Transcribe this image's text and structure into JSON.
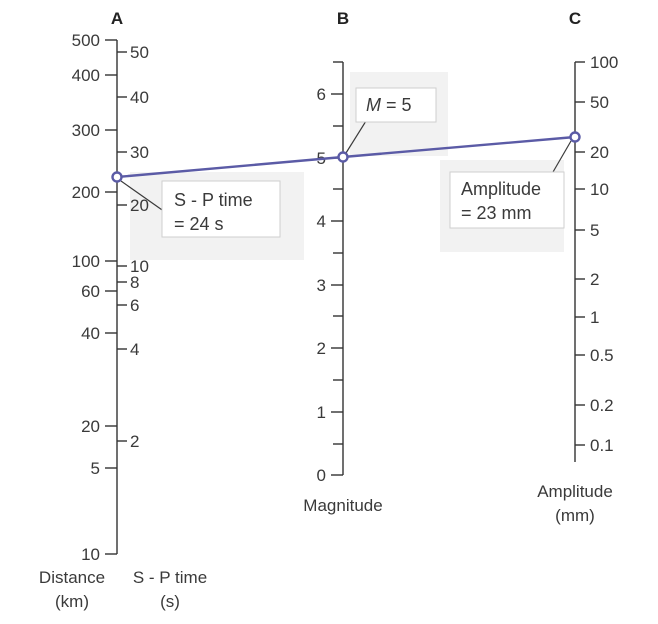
{
  "headers": {
    "a": "A",
    "b": "B",
    "c": "C"
  },
  "axis_a": {
    "distance_ticks": [
      "500",
      "400",
      "300",
      "200",
      "100",
      "60",
      "40",
      "20",
      "5",
      "10"
    ],
    "sp_ticks": [
      "50",
      "40",
      "30",
      "20",
      "10",
      "8",
      "6",
      "4",
      "2"
    ],
    "title_distance_line1": "Distance",
    "title_distance_line2": "(km)",
    "title_sp_line1": "S - P time",
    "title_sp_line2": "(s)"
  },
  "axis_b": {
    "ticks": [
      "6",
      "5",
      "4",
      "3",
      "2",
      "1",
      "0"
    ],
    "title": "Magnitude"
  },
  "axis_c": {
    "ticks": [
      "100",
      "50",
      "20",
      "10",
      "5",
      "2",
      "1",
      "0.5",
      "0.2",
      "0.1"
    ],
    "title_line1": "Amplitude",
    "title_line2": "(mm)"
  },
  "callouts": {
    "sp": {
      "line1": "S - P time",
      "line2": "= 24 s"
    },
    "magnitude": {
      "m_symbol": "M",
      "rest": " = 5"
    },
    "amplitude": {
      "line1": "Amplitude",
      "line2": "= 23 mm"
    }
  },
  "colors": {
    "connector": "#5b5ba6",
    "axis": "#333333",
    "callout_shade": "#f2f2f2"
  }
}
